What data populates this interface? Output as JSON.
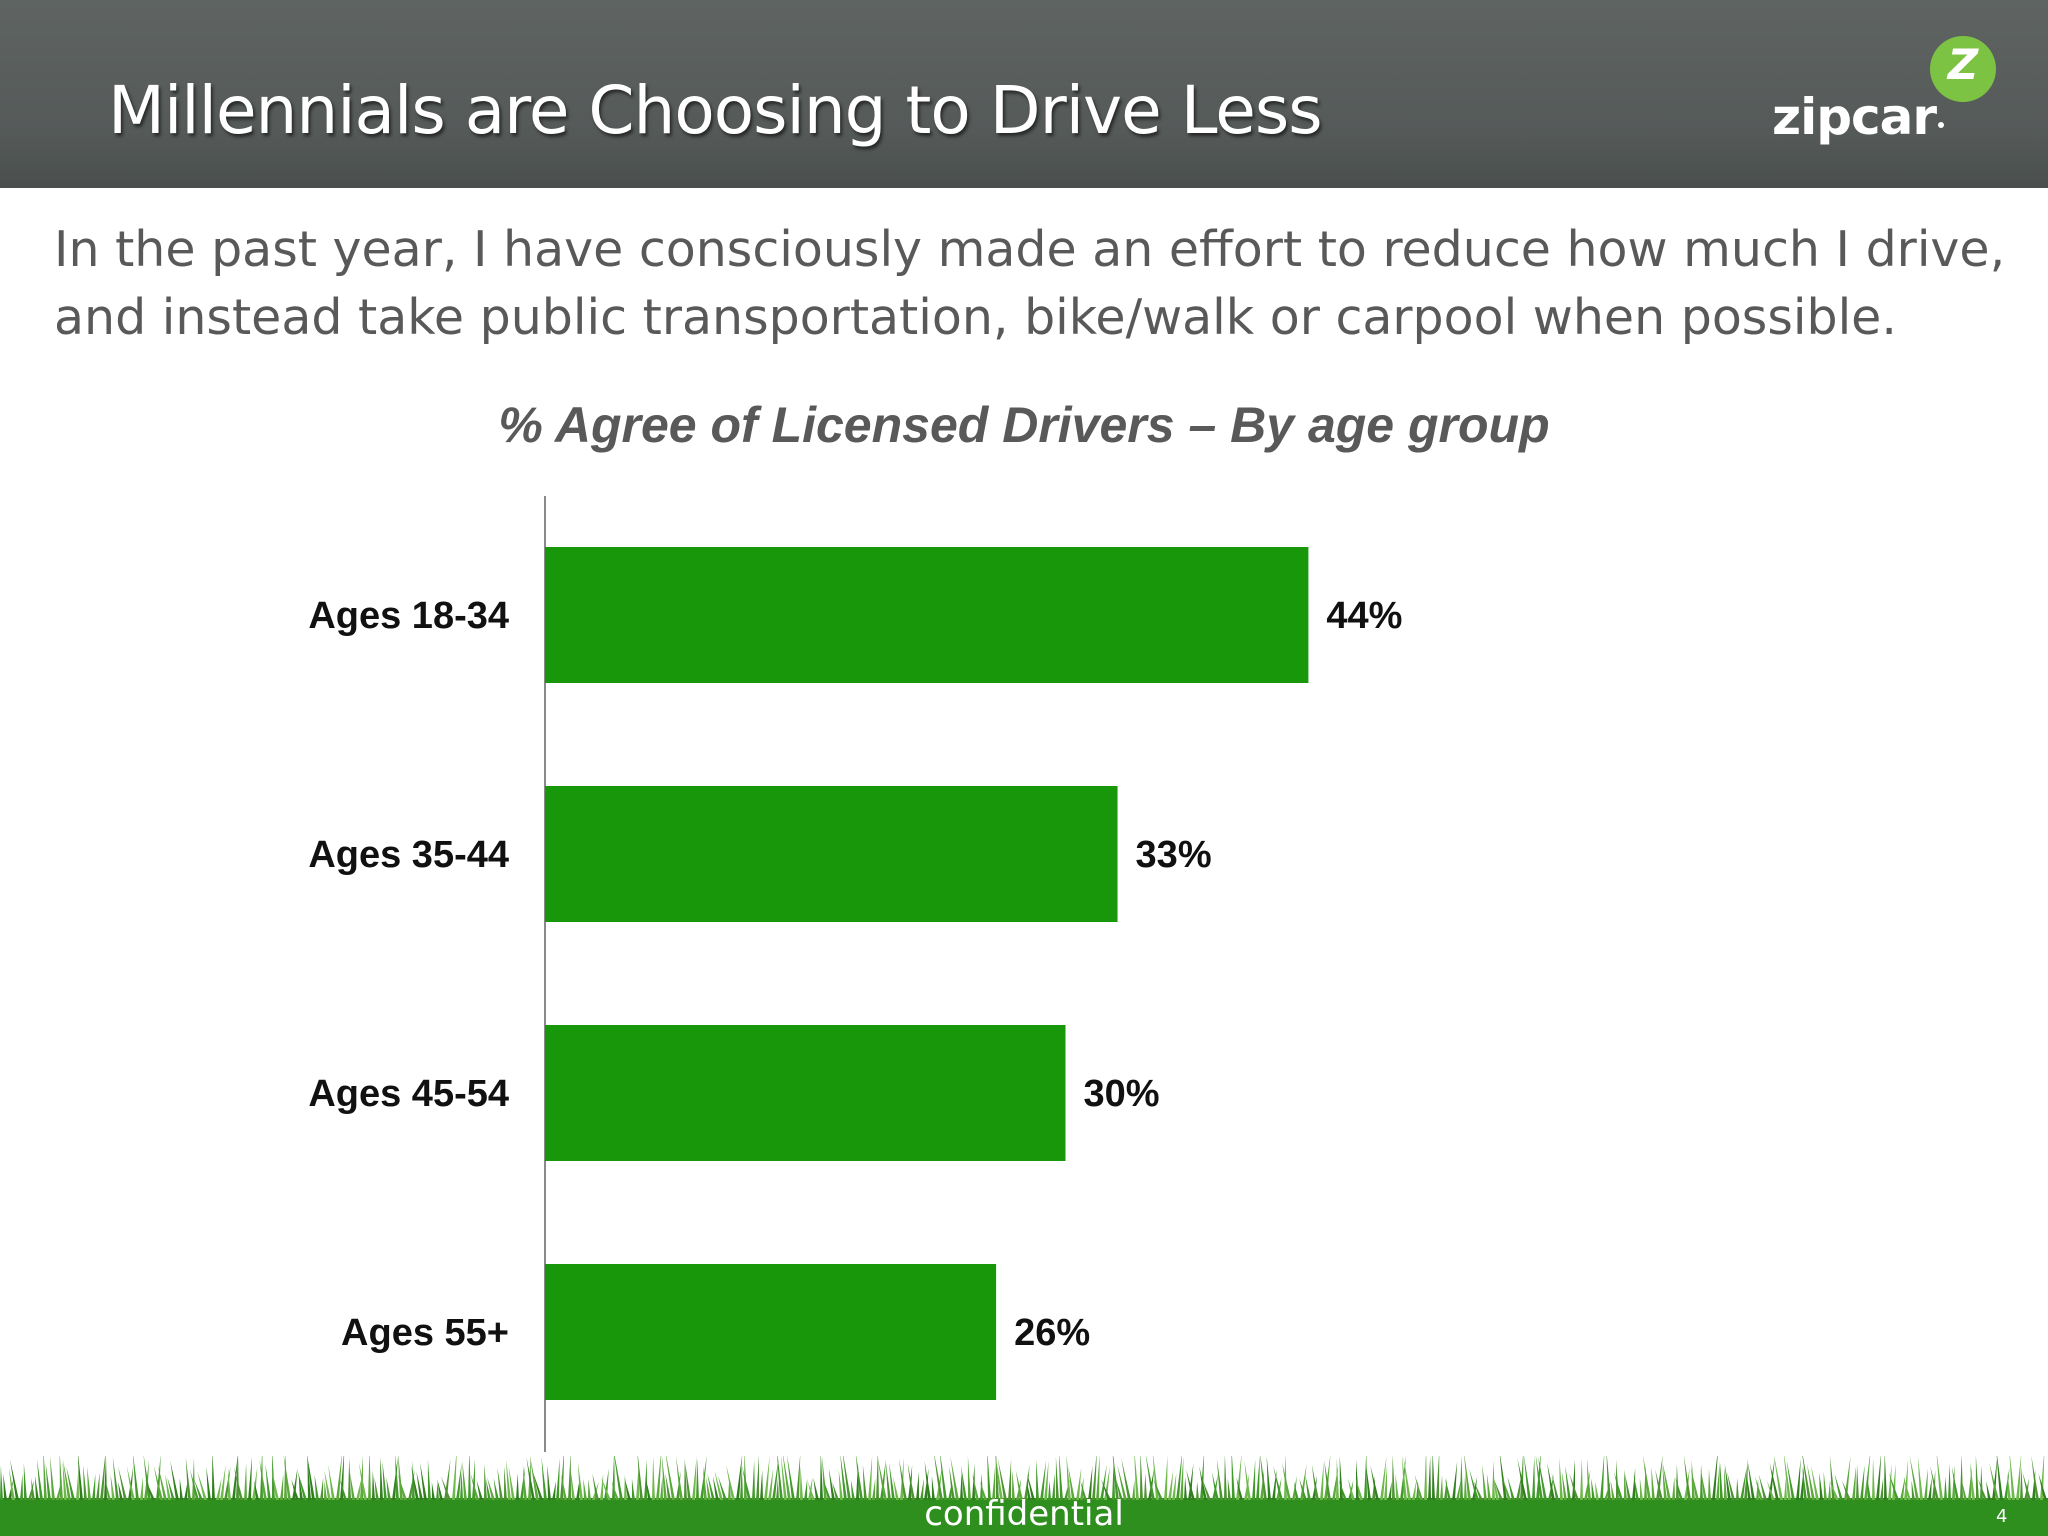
{
  "header": {
    "title": "Millennials are Choosing to Drive Less",
    "logo": {
      "text": "zipcar",
      "mark": "Z",
      "color": "#7cc243"
    }
  },
  "question": "In the past year, I have consciously made an effort to reduce how much I drive, and instead take public transportation, bike/walk or carpool when possible.",
  "chart_data": {
    "type": "bar",
    "orientation": "horizontal",
    "title": "% Agree of Licensed Drivers – By age group",
    "categories": [
      "Ages 18-34",
      "Ages 35-44",
      "Ages 45-54",
      "Ages 55+"
    ],
    "values": [
      44,
      33,
      30,
      26
    ],
    "value_labels": [
      "44%",
      "33%",
      "30%",
      "26%"
    ],
    "unit": "%",
    "xlim": [
      0,
      100
    ],
    "bar_color": "#18970a",
    "grid": false,
    "legend": "none"
  },
  "footer": {
    "label": "confidential",
    "page_number": "4",
    "grass_color": "#2e8f1e"
  }
}
